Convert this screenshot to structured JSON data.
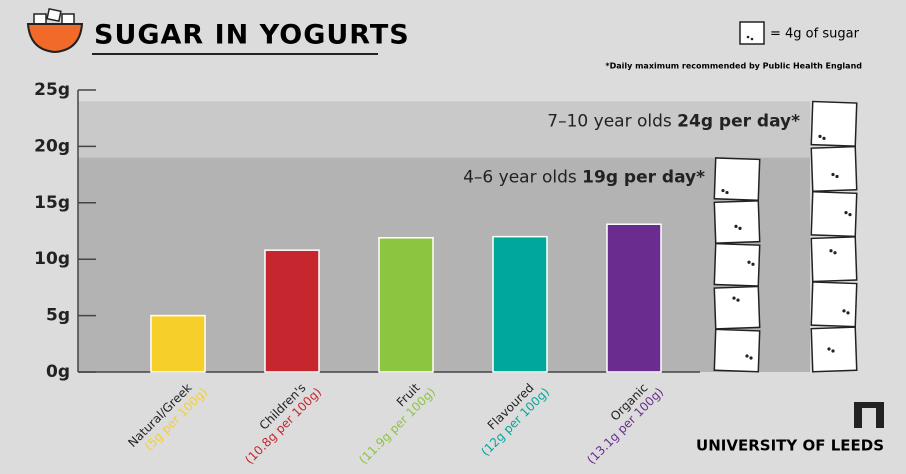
{
  "chart_data": {
    "type": "bar",
    "title": "SUGAR IN YOGURTS",
    "categories": [
      "Natural/Greek",
      "Children's",
      "Fruit",
      "Flavoured",
      "Organic"
    ],
    "category_notes": [
      "(5g per 100g)",
      "(10.8g per 100g)",
      "(11.9g per 100g)",
      "(12g per 100g)",
      "(13.1g per 100g)"
    ],
    "values": [
      5,
      10.8,
      11.9,
      12,
      13.1
    ],
    "colors": [
      "#f7cf2a",
      "#c6262e",
      "#8cc540",
      "#00a89c",
      "#6a2d8f"
    ],
    "ylim": [
      0,
      25
    ],
    "yticks": [
      {
        "value": 0,
        "label": "0g"
      },
      {
        "value": 5,
        "label": "5g"
      },
      {
        "value": 10,
        "label": "10g"
      },
      {
        "value": 15,
        "label": "15g"
      },
      {
        "value": 20,
        "label": "20g"
      },
      {
        "value": 25,
        "label": "25g"
      }
    ],
    "legend": "= 4g of sugar",
    "cube_grams": 4,
    "footnote": "*Daily maximum recommended by Public Health England",
    "thresholds": [
      {
        "group": "7–10 year olds",
        "label": "24g per day*",
        "value": 24,
        "color": "#c9c9c9"
      },
      {
        "group": "4–6 year olds",
        "label": "19g per day*",
        "value": 19,
        "color": "#b3b3b3"
      }
    ]
  },
  "brand": "UNIVERSITY OF LEEDS"
}
